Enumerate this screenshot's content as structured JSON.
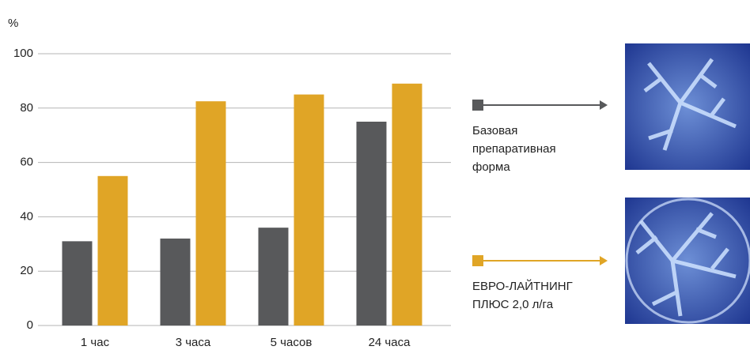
{
  "chart_data": {
    "type": "bar",
    "y_label": "%",
    "categories": [
      "1 час",
      "3 часа",
      "5 часов",
      "24 часа"
    ],
    "series": [
      {
        "name": "Базовая препаративная форма",
        "color": "#58595b",
        "values": [
          31,
          32,
          36,
          75
        ]
      },
      {
        "name": "ЕВРО-ЛАЙТНИНГ ПЛЮС 2,0 л/га",
        "color": "#e0a526",
        "values": [
          55,
          82.5,
          85,
          89
        ]
      }
    ],
    "ylim": [
      0,
      100
    ],
    "yticks": [
      0,
      20,
      40,
      60,
      80,
      100
    ],
    "grid": true
  }
}
